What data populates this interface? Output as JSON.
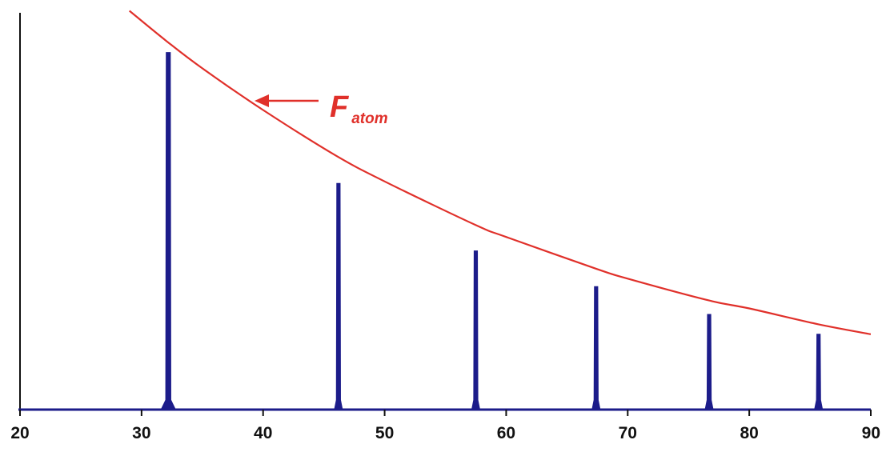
{
  "chart_data": {
    "type": "line",
    "title": "",
    "xlabel": "",
    "ylabel": "",
    "xlim": [
      20,
      90
    ],
    "ylim": [
      0,
      100
    ],
    "x_ticks": [
      "20",
      "30",
      "40",
      "50",
      "60",
      "70",
      "80",
      "90"
    ],
    "grid": false,
    "series": [
      {
        "kind": "line",
        "color": "#e0302a",
        "x": [
          29.0,
          32.0,
          35.0,
          40.0,
          46.0,
          50.0,
          57.5,
          60.0,
          67.4,
          70.0,
          76.7,
          80.0,
          85.7,
          90.0
        ],
        "y": [
          100.5,
          93.0,
          86.0,
          75.5,
          64.0,
          57.5,
          46.5,
          43.5,
          35.5,
          33.0,
          27.5,
          25.5,
          21.5,
          19.0
        ]
      },
      {
        "kind": "peaks",
        "color": "#1c1c8a",
        "x": [
          32.2,
          46.2,
          57.5,
          67.4,
          76.7,
          85.7
        ],
        "y": [
          90,
          57,
          40,
          31,
          24,
          19
        ]
      }
    ],
    "annotation": {
      "main": "F",
      "sub": "atom",
      "arrow_target": "curve"
    }
  }
}
